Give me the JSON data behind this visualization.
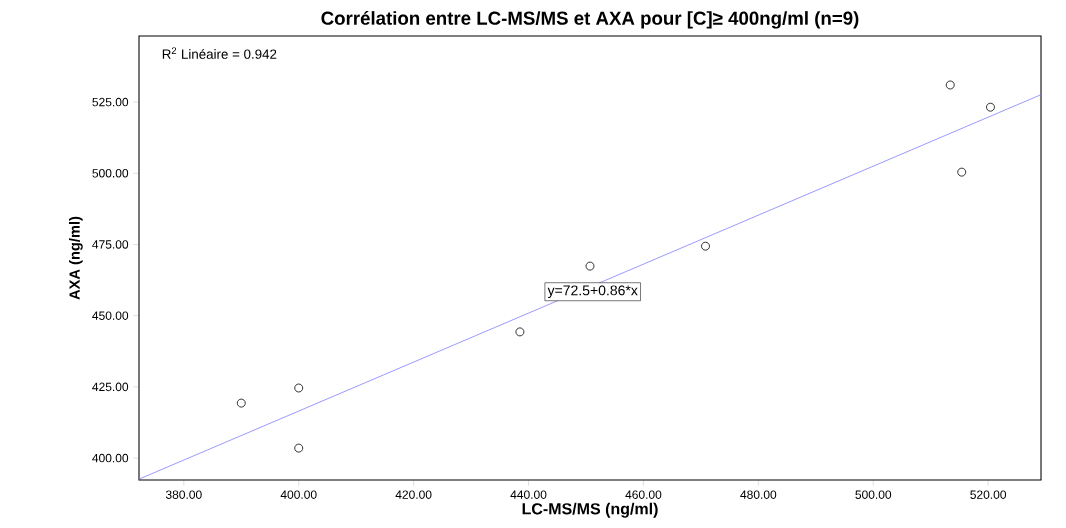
{
  "chart_data": {
    "type": "scatter",
    "title": "Corrélation entre LC-MS/MS et AXA pour [C]≥ 400ng/ml (n=9)",
    "xlabel": "LC-MS/MS (ng/ml)",
    "ylabel": "AXA (ng/ml)",
    "xlim": [
      372.2,
      529.2
    ],
    "ylim": [
      392.3,
      548.2
    ],
    "xticks": [
      {
        "value": 380,
        "label": "380.00"
      },
      {
        "value": 400,
        "label": "400.00"
      },
      {
        "value": 420,
        "label": "420.00"
      },
      {
        "value": 440,
        "label": "440.00"
      },
      {
        "value": 460,
        "label": "460.00"
      },
      {
        "value": 480,
        "label": "480.00"
      },
      {
        "value": 500,
        "label": "500.00"
      },
      {
        "value": 520,
        "label": "520.00"
      }
    ],
    "yticks": [
      {
        "value": 400,
        "label": "400.00"
      },
      {
        "value": 425,
        "label": "425.00"
      },
      {
        "value": 450,
        "label": "450.00"
      },
      {
        "value": 475,
        "label": "475.00"
      },
      {
        "value": 500,
        "label": "500.00"
      },
      {
        "value": 525,
        "label": "525.00"
      }
    ],
    "series": [
      {
        "color": "#000000",
        "marker": "circle",
        "x": [
          390,
          400,
          400,
          438.5,
          450.7,
          470.8,
          513.4,
          515.4,
          520.4
        ],
        "values": [
          419.3,
          424.6,
          403.5,
          444.3,
          467.4,
          474.4,
          531,
          500.4,
          523.2
        ]
      },
      {
        "type": "line",
        "color": "#8080ff",
        "marker": "none",
        "x": [
          372.2,
          529.2
        ],
        "values": [
          392.6,
          527.6
        ]
      }
    ],
    "annotations": [
      "R$^{2}$ Linéaire = 0.942",
      "y=72.5+0.86*x"
    ]
  }
}
